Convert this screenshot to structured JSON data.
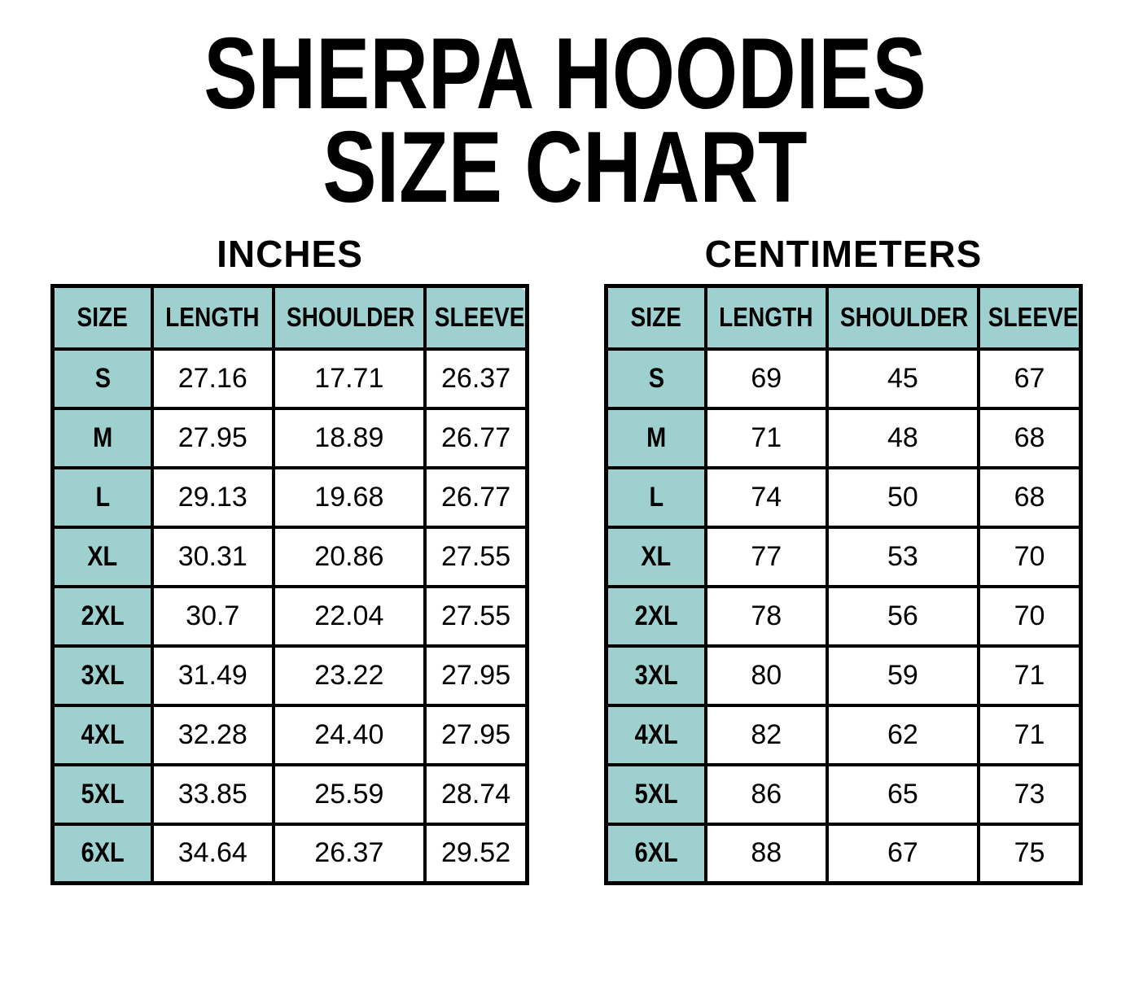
{
  "title": {
    "line1": "SHERPA HOODIES",
    "line2": "SIZE CHART"
  },
  "colors": {
    "header_fill": "#9fd0d0",
    "border": "#000000",
    "background": "#ffffff",
    "text": "#000000"
  },
  "tables": [
    {
      "label": "INCHES",
      "columns": [
        "SIZE",
        "LENGTH",
        "SHOULDER",
        "SLEEVE"
      ],
      "rows": [
        [
          "S",
          "27.16",
          "17.71",
          "26.37"
        ],
        [
          "M",
          "27.95",
          "18.89",
          "26.77"
        ],
        [
          "L",
          "29.13",
          "19.68",
          "26.77"
        ],
        [
          "XL",
          "30.31",
          "20.86",
          "27.55"
        ],
        [
          "2XL",
          "30.7",
          "22.04",
          "27.55"
        ],
        [
          "3XL",
          "31.49",
          "23.22",
          "27.95"
        ],
        [
          "4XL",
          "32.28",
          "24.40",
          "27.95"
        ],
        [
          "5XL",
          "33.85",
          "25.59",
          "28.74"
        ],
        [
          "6XL",
          "34.64",
          "26.37",
          "29.52"
        ]
      ]
    },
    {
      "label": "CENTIMETERS",
      "columns": [
        "SIZE",
        "LENGTH",
        "SHOULDER",
        "SLEEVE"
      ],
      "rows": [
        [
          "S",
          "69",
          "45",
          "67"
        ],
        [
          "M",
          "71",
          "48",
          "68"
        ],
        [
          "L",
          "74",
          "50",
          "68"
        ],
        [
          "XL",
          "77",
          "53",
          "70"
        ],
        [
          "2XL",
          "78",
          "56",
          "70"
        ],
        [
          "3XL",
          "80",
          "59",
          "71"
        ],
        [
          "4XL",
          "82",
          "62",
          "71"
        ],
        [
          "5XL",
          "86",
          "65",
          "73"
        ],
        [
          "6XL",
          "88",
          "67",
          "75"
        ]
      ]
    }
  ]
}
